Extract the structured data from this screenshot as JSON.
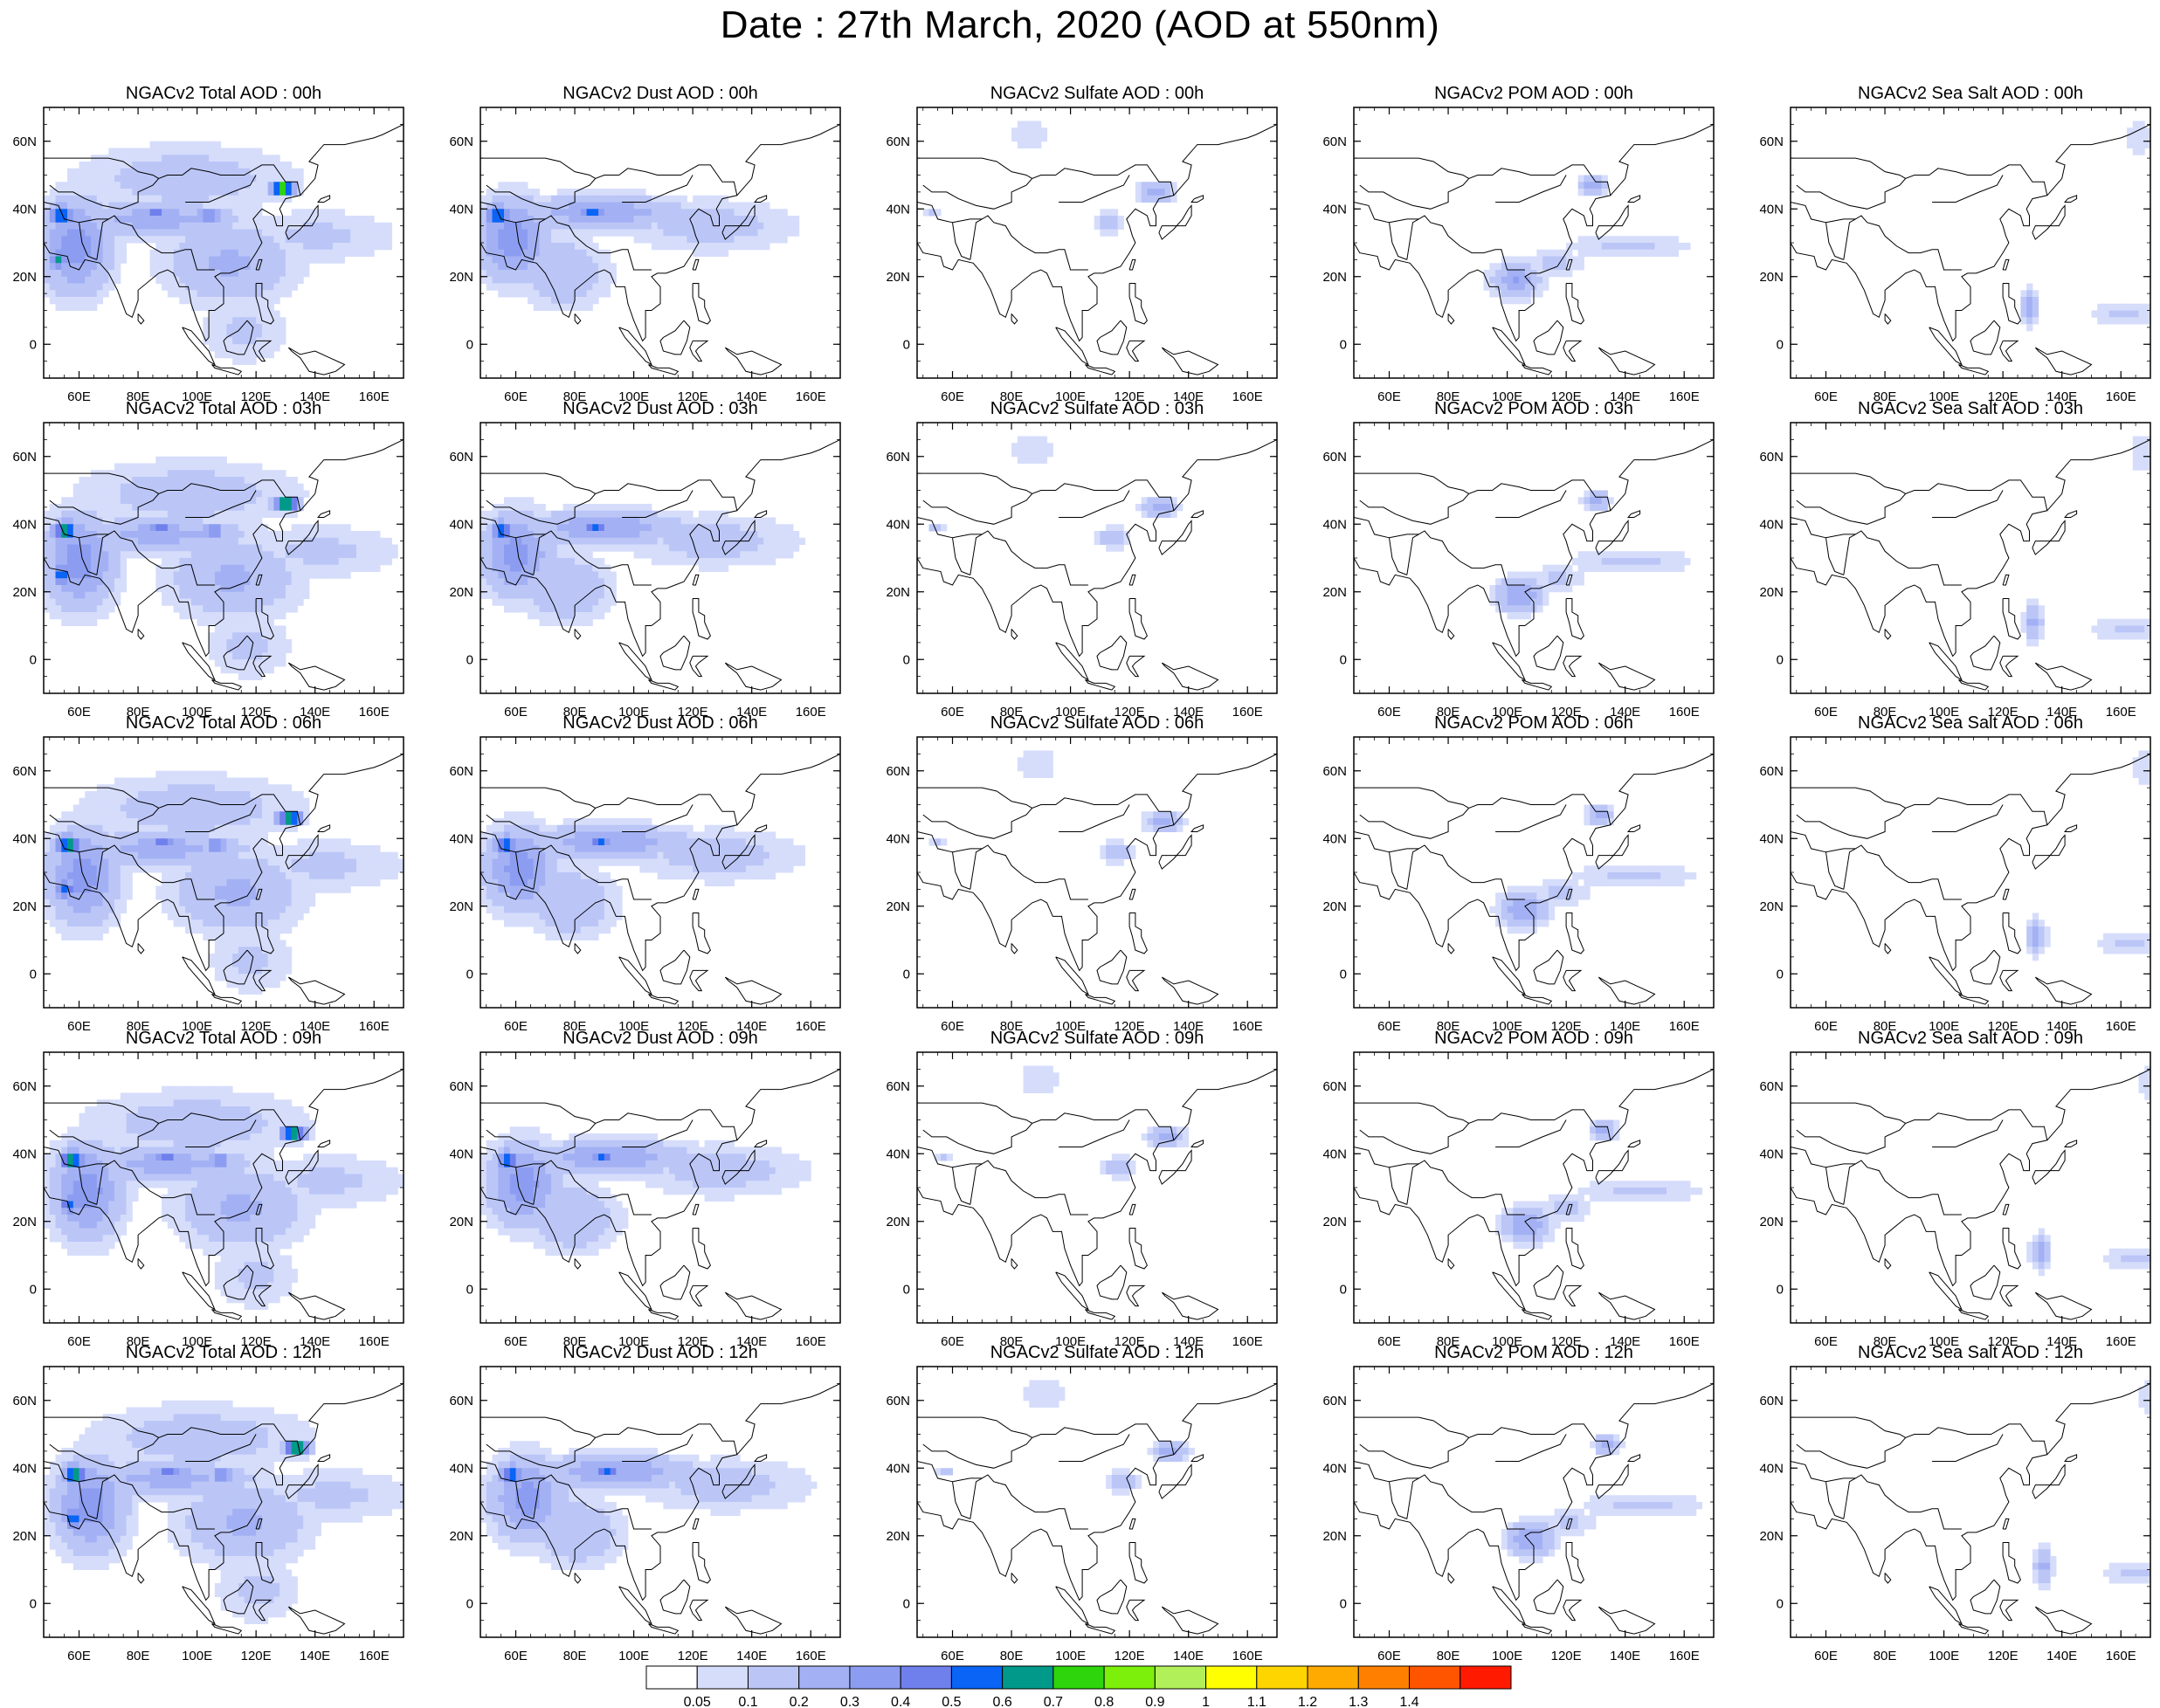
{
  "title": "Date : 27th March, 2020 (AOD at 550nm)",
  "map": {
    "lon_range": [
      48,
      170
    ],
    "lat_range": [
      -10,
      70
    ],
    "lon_ticks": [
      "60E",
      "80E",
      "100E",
      "120E",
      "140E",
      "160E"
    ],
    "lat_ticks": [
      "60N",
      "40N",
      "20N",
      "0"
    ]
  },
  "panels": [
    [
      {
        "title": "NGACv2 Total AOD : 00h",
        "species": "total",
        "time": "00h"
      },
      {
        "title": "NGACv2 Dust AOD : 00h",
        "species": "dust",
        "time": "00h"
      },
      {
        "title": "NGACv2 Sulfate AOD : 00h",
        "species": "sulfate",
        "time": "00h"
      },
      {
        "title": "NGACv2 POM AOD : 00h",
        "species": "pom",
        "time": "00h"
      },
      {
        "title": "NGACv2 Sea Salt AOD : 00h",
        "species": "seasalt",
        "time": "00h"
      }
    ],
    [
      {
        "title": "NGACv2 Total AOD : 03h",
        "species": "total",
        "time": "03h"
      },
      {
        "title": "NGACv2 Dust AOD : 03h",
        "species": "dust",
        "time": "03h"
      },
      {
        "title": "NGACv2 Sulfate AOD : 03h",
        "species": "sulfate",
        "time": "03h"
      },
      {
        "title": "NGACv2 POM AOD : 03h",
        "species": "pom",
        "time": "03h"
      },
      {
        "title": "NGACv2 Sea Salt AOD : 03h",
        "species": "seasalt",
        "time": "03h"
      }
    ],
    [
      {
        "title": "NGACv2 Total AOD : 06h",
        "species": "total",
        "time": "06h"
      },
      {
        "title": "NGACv2 Dust AOD : 06h",
        "species": "dust",
        "time": "06h"
      },
      {
        "title": "NGACv2 Sulfate AOD : 06h",
        "species": "sulfate",
        "time": "06h"
      },
      {
        "title": "NGACv2 POM AOD : 06h",
        "species": "pom",
        "time": "06h"
      },
      {
        "title": "NGACv2 Sea Salt AOD : 06h",
        "species": "seasalt",
        "time": "06h"
      }
    ],
    [
      {
        "title": "NGACv2 Total AOD : 09h",
        "species": "total",
        "time": "09h"
      },
      {
        "title": "NGACv2 Dust AOD : 09h",
        "species": "dust",
        "time": "09h"
      },
      {
        "title": "NGACv2 Sulfate AOD : 09h",
        "species": "sulfate",
        "time": "09h"
      },
      {
        "title": "NGACv2 POM AOD : 09h",
        "species": "pom",
        "time": "09h"
      },
      {
        "title": "NGACv2 Sea Salt  AOD : 09h",
        "species": "seasalt",
        "time": "09h"
      }
    ],
    [
      {
        "title": "NGACv2 Total AOD  : 12h",
        "species": "total",
        "time": "12h"
      },
      {
        "title": "NGACv2 Dust AOD : 12h",
        "species": "dust",
        "time": "12h"
      },
      {
        "title": "NGACv2 Sulfate AOD : 12h",
        "species": "sulfate",
        "time": "12h"
      },
      {
        "title": "NGACv2 POM  AOD : 12h",
        "species": "pom",
        "time": "12h"
      },
      {
        "title": "NGACv2 Sea Salt  AOD : 12h",
        "species": "seasalt",
        "time": "12h"
      }
    ]
  ],
  "aerosol_fields": {
    "total": [
      {
        "lon": 58,
        "lat": 30,
        "rlon": 12,
        "rlat": 14,
        "v": 0.35
      },
      {
        "lon": 85,
        "lat": 38,
        "rlon": 30,
        "rlat": 5,
        "v": 0.25
      },
      {
        "lon": 110,
        "lat": 25,
        "rlon": 22,
        "rlat": 12,
        "v": 0.22
      },
      {
        "lon": 95,
        "lat": 50,
        "rlon": 38,
        "rlat": 10,
        "v": 0.15
      },
      {
        "lon": 140,
        "lat": 33,
        "rlon": 28,
        "rlat": 8,
        "v": 0.12
      },
      {
        "lon": 128,
        "lat": 47,
        "rlon": 4,
        "rlat": 2,
        "v": 0.9
      },
      {
        "lon": 53,
        "lat": 39,
        "rlon": 4,
        "rlat": 3,
        "v": 0.7
      },
      {
        "lon": 52,
        "lat": 26,
        "rlon": 3,
        "rlat": 3,
        "v": 0.6
      },
      {
        "lon": 103,
        "lat": 39,
        "rlon": 4,
        "rlat": 2,
        "v": 0.5
      },
      {
        "lon": 85,
        "lat": 40,
        "rlon": 4,
        "rlat": 2,
        "v": 0.5
      },
      {
        "lon": 115,
        "lat": 5,
        "rlon": 15,
        "rlat": 10,
        "v": 0.12
      }
    ],
    "dust": [
      {
        "lon": 58,
        "lat": 32,
        "rlon": 12,
        "rlat": 12,
        "v": 0.35
      },
      {
        "lon": 88,
        "lat": 40,
        "rlon": 28,
        "rlat": 5,
        "v": 0.28
      },
      {
        "lon": 125,
        "lat": 36,
        "rlon": 30,
        "rlat": 8,
        "v": 0.14
      },
      {
        "lon": 53,
        "lat": 39,
        "rlon": 4,
        "rlat": 3,
        "v": 0.6
      },
      {
        "lon": 85,
        "lat": 40,
        "rlon": 4,
        "rlat": 2,
        "v": 0.55
      },
      {
        "lon": 75,
        "lat": 22,
        "rlon": 15,
        "rlat": 10,
        "v": 0.2
      }
    ],
    "sulfate": [
      {
        "lon": 85,
        "lat": 63,
        "rlon": 8,
        "rlat": 5,
        "v": 0.1
      },
      {
        "lon": 128,
        "lat": 46,
        "rlon": 6,
        "rlat": 3,
        "v": 0.25
      },
      {
        "lon": 112,
        "lat": 37,
        "rlon": 5,
        "rlat": 3,
        "v": 0.2
      },
      {
        "lon": 52,
        "lat": 40,
        "rlon": 3,
        "rlat": 2,
        "v": 0.12
      }
    ],
    "pom": [
      {
        "lon": 128,
        "lat": 48,
        "rlon": 4,
        "rlat": 3,
        "v": 0.28
      },
      {
        "lon": 102,
        "lat": 20,
        "rlon": 8,
        "rlat": 5,
        "v": 0.3
      },
      {
        "lon": 140,
        "lat": 30,
        "rlon": 22,
        "rlat": 4,
        "v": 0.12
      },
      {
        "lon": 115,
        "lat": 25,
        "rlon": 10,
        "rlat": 4,
        "v": 0.12
      }
    ],
    "seasalt": [
      {
        "lon": 160,
        "lat": 10,
        "rlon": 12,
        "rlat": 4,
        "v": 0.12
      },
      {
        "lon": 128,
        "lat": 12,
        "rlon": 3,
        "rlat": 5,
        "v": 0.25
      },
      {
        "lon": 165,
        "lat": 62,
        "rlon": 5,
        "rlat": 6,
        "v": 0.1
      }
    ]
  },
  "colorbar": {
    "colors": [
      "#ffffff",
      "#d6ddfb",
      "#bbc6f7",
      "#a3b1f4",
      "#8c9df1",
      "#6f80ed",
      "#0a64f5",
      "#00998a",
      "#2ed50c",
      "#7cf00a",
      "#b2f05a",
      "#ffff00",
      "#ffd500",
      "#ffaa00",
      "#ff8000",
      "#ff5500",
      "#ff1a00"
    ],
    "labels": [
      "0.05",
      "0.1",
      "0.2",
      "0.3",
      "0.4",
      "0.5",
      "0.6",
      "0.7",
      "0.8",
      "0.9",
      "1",
      "1.1",
      "1.2",
      "1.3",
      "1.4"
    ]
  }
}
